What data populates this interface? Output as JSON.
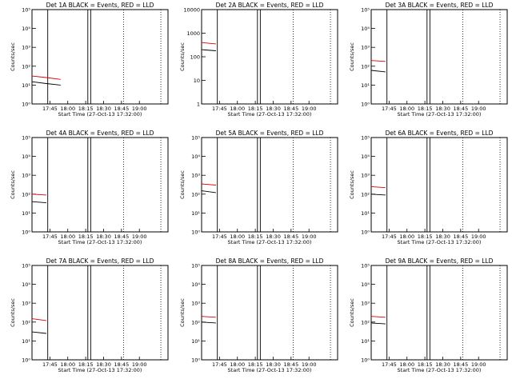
{
  "chart_data": [
    {
      "type": "line",
      "title": "Det 1A BLACK = Events, RED = LLD",
      "xlabel": "Start Time (27-Oct-13 17:32:00)",
      "ylabel": "Counts/sec",
      "yscale": "log",
      "ylim": [
        1,
        100000
      ],
      "yticks": [
        "10⁰",
        "10¹",
        "10²",
        "10³",
        "10⁴",
        "10⁵"
      ],
      "xticks": [
        "17:45",
        "18:00",
        "18:15",
        "18:30",
        "18:45",
        "19:00"
      ],
      "grid": false,
      "series": [
        {
          "name": "Events",
          "color": "#000000",
          "points": [
            [
              17.5,
              15
            ],
            [
              17.7,
              12
            ],
            [
              17.9,
              10
            ]
          ]
        },
        {
          "name": "LLD",
          "color": "#dd0000",
          "points": [
            [
              17.5,
              30
            ],
            [
              17.7,
              25
            ],
            [
              17.9,
              20
            ]
          ]
        }
      ]
    },
    {
      "type": "line",
      "title": "Det 2A BLACK = Events, RED = LLD",
      "xlabel": "Start Time (27-Oct-13 17:32:00)",
      "ylabel": "Counts/sec",
      "yscale": "log",
      "ylim": [
        1,
        10000
      ],
      "yticks": [
        "1",
        "10",
        "100",
        "1000",
        "10000"
      ],
      "xticks": [
        "17:45",
        "18:00",
        "18:15",
        "18:30",
        "18:45",
        "19:00"
      ],
      "grid": false,
      "series": [
        {
          "name": "Events",
          "color": "#000000",
          "points": [
            [
              17.5,
              200
            ],
            [
              17.7,
              180
            ]
          ]
        },
        {
          "name": "LLD",
          "color": "#dd0000",
          "points": [
            [
              17.5,
              400
            ],
            [
              17.7,
              350
            ]
          ]
        }
      ]
    },
    {
      "type": "line",
      "title": "Det 3A BLACK = Events, RED = LLD",
      "xlabel": "Start Time (27-Oct-13 17:32:00)",
      "ylabel": "Counts/sec",
      "yscale": "log",
      "ylim": [
        1,
        100000
      ],
      "yticks": [
        "10⁰",
        "10¹",
        "10²",
        "10³",
        "10⁴",
        "10⁵"
      ],
      "xticks": [
        "17:45",
        "18:00",
        "18:15",
        "18:30",
        "18:45",
        "19:00"
      ],
      "grid": false,
      "series": [
        {
          "name": "Events",
          "color": "#000000",
          "points": [
            [
              17.5,
              60
            ],
            [
              17.7,
              50
            ]
          ]
        },
        {
          "name": "LLD",
          "color": "#dd0000",
          "points": [
            [
              17.5,
              200
            ],
            [
              17.7,
              180
            ]
          ]
        }
      ]
    },
    {
      "type": "line",
      "title": "Det 4A BLACK = Events, RED = LLD",
      "xlabel": "Start Time (27-Oct-13 17:32:00)",
      "ylabel": "Counts/sec",
      "yscale": "log",
      "ylim": [
        1,
        100000
      ],
      "yticks": [
        "10⁰",
        "10¹",
        "10²",
        "10³",
        "10⁴",
        "10⁵"
      ],
      "xticks": [
        "17:45",
        "18:00",
        "18:15",
        "18:30",
        "18:45",
        "19:00"
      ],
      "grid": false,
      "series": [
        {
          "name": "Events",
          "color": "#000000",
          "points": [
            [
              17.5,
              40
            ],
            [
              17.7,
              35
            ]
          ]
        },
        {
          "name": "LLD",
          "color": "#dd0000",
          "points": [
            [
              17.5,
              100
            ],
            [
              17.7,
              90
            ]
          ]
        }
      ]
    },
    {
      "type": "line",
      "title": "Det 5A BLACK = Events, RED = LLD",
      "xlabel": "Start Time (27-Oct-13 17:32:00)",
      "ylabel": "Counts/sec",
      "yscale": "log",
      "ylim": [
        1,
        100000
      ],
      "yticks": [
        "10⁰",
        "10¹",
        "10²",
        "10³",
        "10⁴",
        "10⁵"
      ],
      "xticks": [
        "17:45",
        "18:00",
        "18:15",
        "18:30",
        "18:45",
        "19:00"
      ],
      "grid": false,
      "series": [
        {
          "name": "Events",
          "color": "#000000",
          "points": [
            [
              17.5,
              150
            ],
            [
              17.7,
              120
            ]
          ]
        },
        {
          "name": "LLD",
          "color": "#dd0000",
          "points": [
            [
              17.5,
              350
            ],
            [
              17.7,
              300
            ]
          ]
        }
      ]
    },
    {
      "type": "line",
      "title": "Det 6A BLACK = Events, RED = LLD",
      "xlabel": "Start Time (27-Oct-13 17:32:00)",
      "ylabel": "Counts/sec",
      "yscale": "log",
      "ylim": [
        1,
        100000
      ],
      "yticks": [
        "10⁰",
        "10¹",
        "10²",
        "10³",
        "10⁴",
        "10⁵"
      ],
      "xticks": [
        "17:45",
        "18:00",
        "18:15",
        "18:30",
        "18:45",
        "19:00"
      ],
      "grid": false,
      "series": [
        {
          "name": "Events",
          "color": "#000000",
          "points": [
            [
              17.5,
              100
            ],
            [
              17.7,
              90
            ]
          ]
        },
        {
          "name": "LLD",
          "color": "#dd0000",
          "points": [
            [
              17.5,
              250
            ],
            [
              17.7,
              220
            ]
          ]
        }
      ]
    },
    {
      "type": "line",
      "title": "Det 7A BLACK = Events, RED = LLD",
      "xlabel": "Start Time (27-Oct-13 17:32:00)",
      "ylabel": "Counts/sec",
      "yscale": "log",
      "ylim": [
        1,
        100000
      ],
      "yticks": [
        "10⁰",
        "10¹",
        "10²",
        "10³",
        "10⁴",
        "10⁵"
      ],
      "xticks": [
        "17:45",
        "18:00",
        "18:15",
        "18:30",
        "18:45",
        "19:00"
      ],
      "grid": false,
      "series": [
        {
          "name": "Events",
          "color": "#000000",
          "points": [
            [
              17.5,
              30
            ],
            [
              17.7,
              25
            ]
          ]
        },
        {
          "name": "LLD",
          "color": "#dd0000",
          "points": [
            [
              17.5,
              150
            ],
            [
              17.7,
              120
            ]
          ]
        }
      ]
    },
    {
      "type": "line",
      "title": "Det 8A BLACK = Events, RED = LLD",
      "xlabel": "Start Time (27-Oct-13 17:32:00)",
      "ylabel": "Counts/sec",
      "yscale": "log",
      "ylim": [
        1,
        100000
      ],
      "yticks": [
        "10⁰",
        "10¹",
        "10²",
        "10³",
        "10⁴",
        "10⁵"
      ],
      "xticks": [
        "17:45",
        "18:00",
        "18:15",
        "18:30",
        "18:45",
        "19:00"
      ],
      "grid": false,
      "series": [
        {
          "name": "Events",
          "color": "#000000",
          "points": [
            [
              17.5,
              100
            ],
            [
              17.7,
              90
            ]
          ]
        },
        {
          "name": "LLD",
          "color": "#dd0000",
          "points": [
            [
              17.5,
              200
            ],
            [
              17.7,
              180
            ]
          ]
        }
      ]
    },
    {
      "type": "line",
      "title": "Det 9A BLACK = Events, RED = LLD",
      "xlabel": "Start Time (27-Oct-13 17:32:00)",
      "ylabel": "Counts/sec",
      "yscale": "log",
      "ylim": [
        1,
        100000
      ],
      "yticks": [
        "10⁰",
        "10¹",
        "10²",
        "10³",
        "10⁴",
        "10⁵"
      ],
      "xticks": [
        "17:45",
        "18:00",
        "18:15",
        "18:30",
        "18:45",
        "19:00"
      ],
      "grid": false,
      "series": [
        {
          "name": "Events",
          "color": "#000000",
          "points": [
            [
              17.5,
              90
            ],
            [
              17.7,
              80
            ]
          ]
        },
        {
          "name": "LLD",
          "color": "#dd0000",
          "points": [
            [
              17.5,
              200
            ],
            [
              17.7,
              180
            ]
          ]
        }
      ]
    }
  ]
}
